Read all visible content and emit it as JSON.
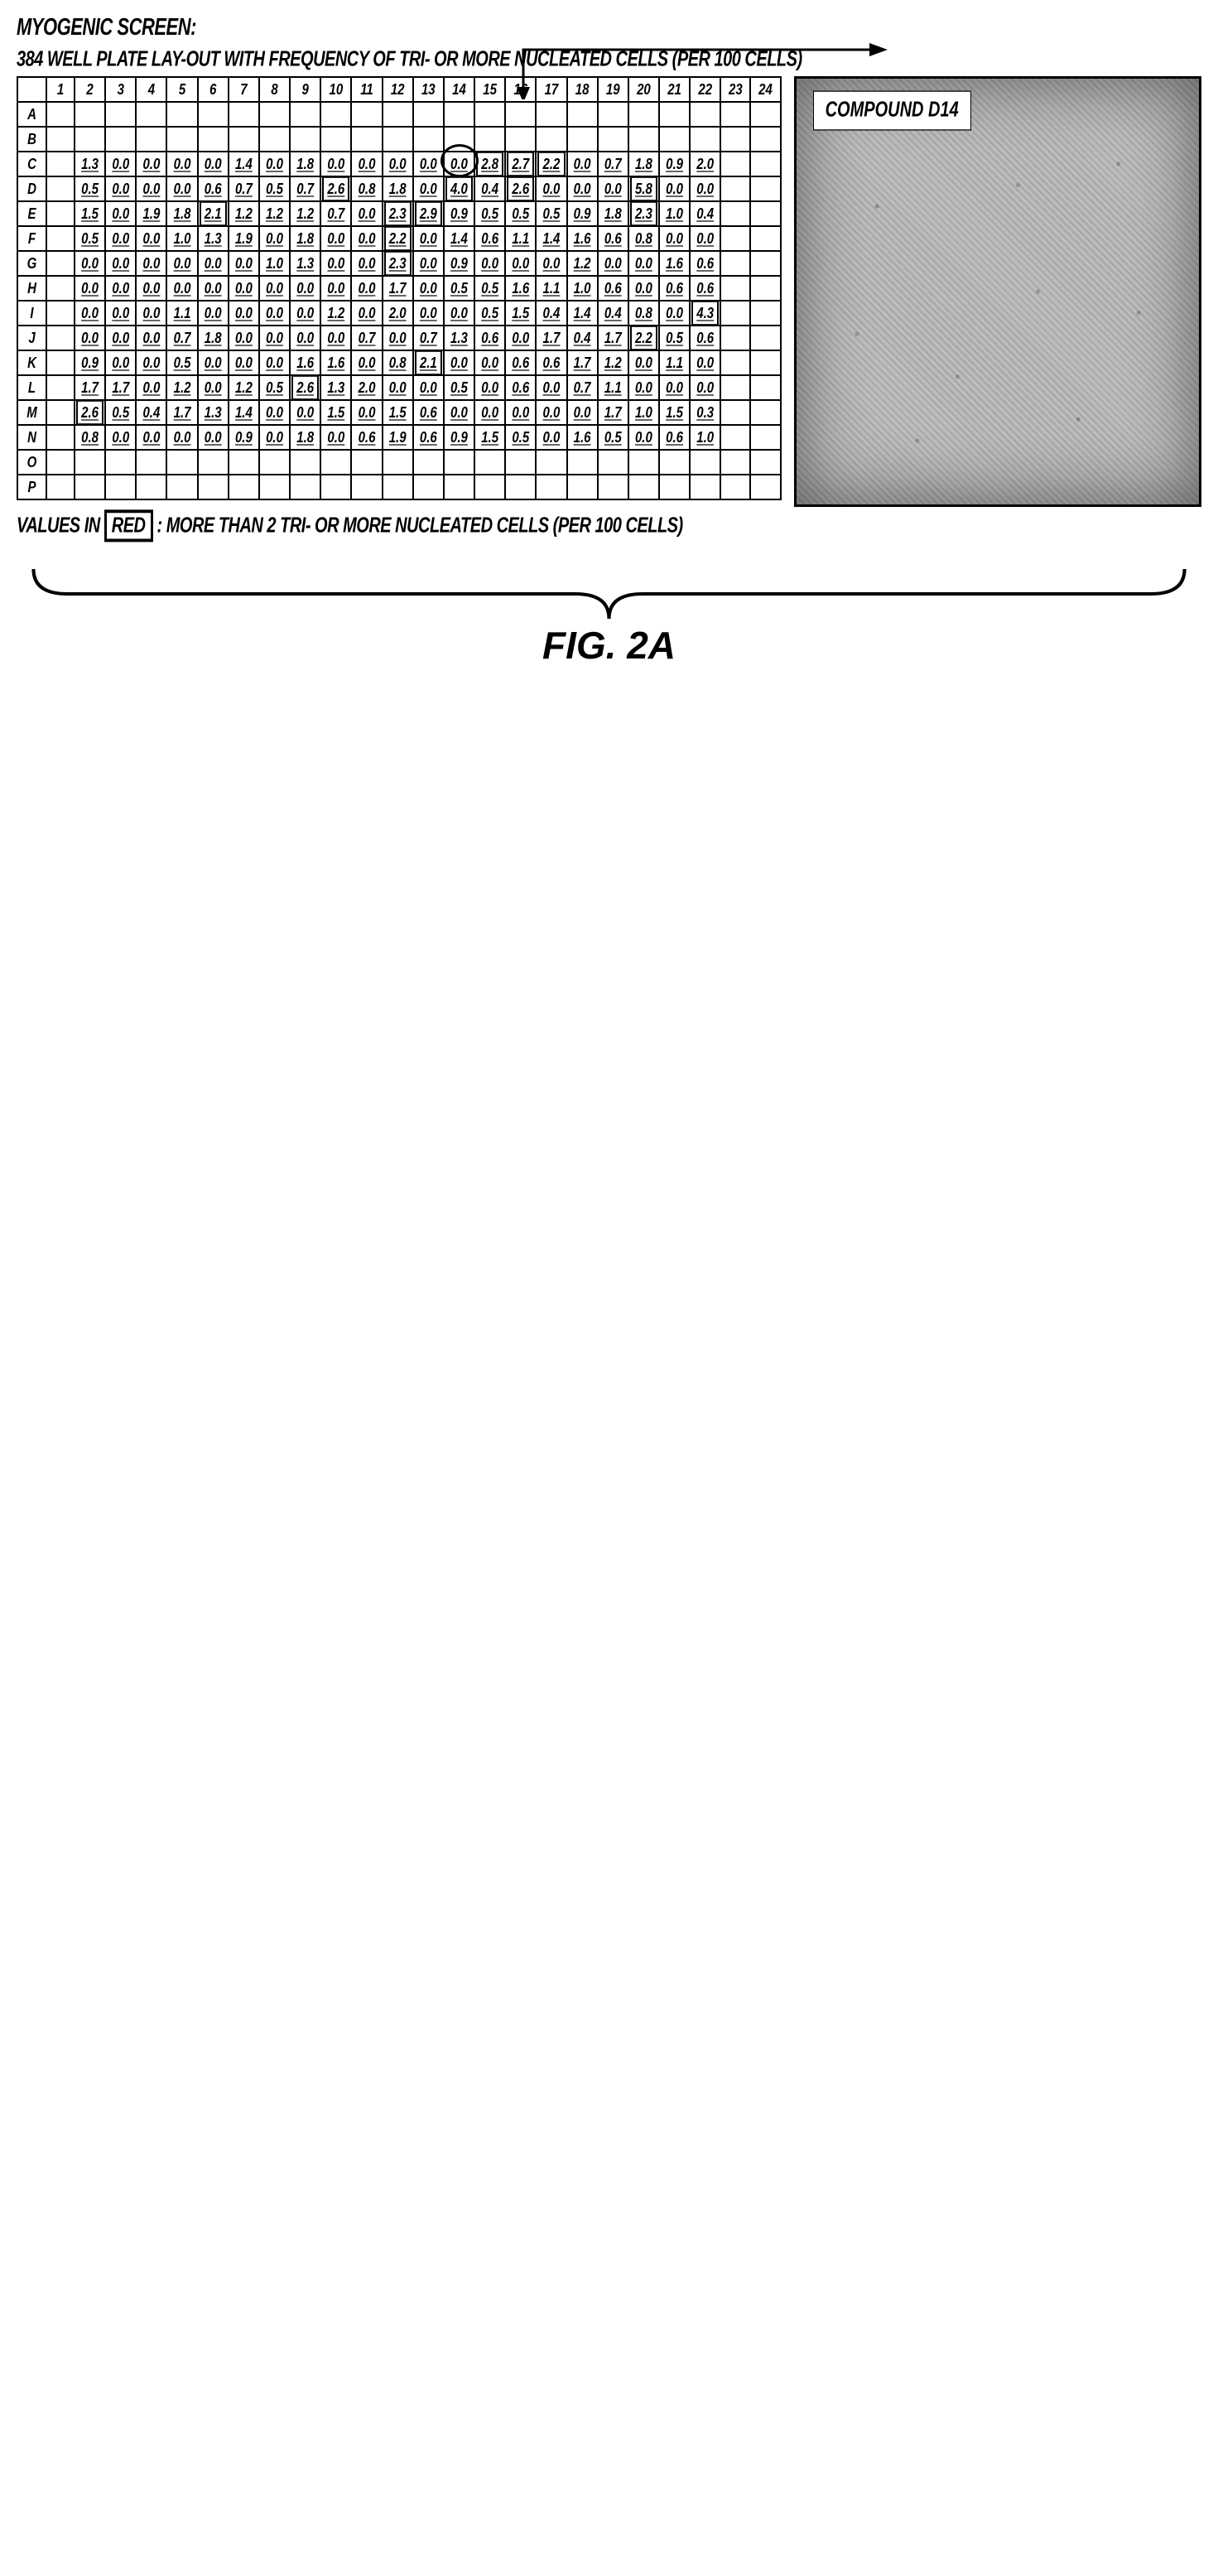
{
  "title_main": "MYOGENIC SCREEN:",
  "subtitle": "384 WELL PLATE LAY-OUT WITH FREQUENCY OF TRI- OR MORE NUCLEATED CELLS (PER 100 CELLS)",
  "legend_prefix": "VALUES IN ",
  "legend_red": "RED",
  "legend_suffix": " : MORE THAN 2 TRI- OR MORE NUCLEATED CELLS (PER 100 CELLS)",
  "image_label": "COMPOUND D14",
  "figure_label": "FIG. 2A",
  "columns": [
    "1",
    "2",
    "3",
    "4",
    "5",
    "6",
    "7",
    "8",
    "9",
    "10",
    "11",
    "12",
    "13",
    "14",
    "15",
    "16",
    "17",
    "18",
    "19",
    "20",
    "21",
    "22",
    "23",
    "24"
  ],
  "rows": [
    "A",
    "B",
    "C",
    "D",
    "E",
    "F",
    "G",
    "H",
    "I",
    "J",
    "K",
    "L",
    "M",
    "N",
    "O",
    "P"
  ],
  "highlight_threshold": 2.0,
  "circled_cell": {
    "row": "C",
    "col": "14"
  },
  "data": {
    "C": {
      "2": "1.3",
      "3": "0.0",
      "4": "0.0",
      "5": "0.0",
      "6": "0.0",
      "7": "1.4",
      "8": "0.0",
      "9": "1.8",
      "10": "0.0",
      "11": "0.0",
      "12": "0.0",
      "13": "0.0",
      "14": "0.0",
      "15": "2.8",
      "16": "2.7",
      "17": "2.2",
      "18": "0.0",
      "19": "0.7",
      "20": "1.8",
      "21": "0.9",
      "22": "2.0"
    },
    "D": {
      "2": "0.5",
      "3": "0.0",
      "4": "0.0",
      "5": "0.0",
      "6": "0.6",
      "7": "0.7",
      "8": "0.5",
      "9": "0.7",
      "10": "2.6",
      "11": "0.8",
      "12": "1.8",
      "13": "0.0",
      "14": "4.0",
      "15": "0.4",
      "16": "2.6",
      "17": "0.0",
      "18": "0.0",
      "19": "0.0",
      "20": "5.8",
      "21": "0.0",
      "22": "0.0"
    },
    "E": {
      "2": "1.5",
      "3": "0.0",
      "4": "1.9",
      "5": "1.8",
      "6": "2.1",
      "7": "1.2",
      "8": "1.2",
      "9": "1.2",
      "10": "0.7",
      "11": "0.0",
      "12": "2.3",
      "13": "2.9",
      "14": "0.9",
      "15": "0.5",
      "16": "0.5",
      "17": "0.5",
      "18": "0.9",
      "19": "1.8",
      "20": "2.3",
      "21": "1.0",
      "22": "0.4"
    },
    "F": {
      "2": "0.5",
      "3": "0.0",
      "4": "0.0",
      "5": "1.0",
      "6": "1.3",
      "7": "1.9",
      "8": "0.0",
      "9": "1.8",
      "10": "0.0",
      "11": "0.0",
      "12": "2.2",
      "13": "0.0",
      "14": "1.4",
      "15": "0.6",
      "16": "1.1",
      "17": "1.4",
      "18": "1.6",
      "19": "0.6",
      "20": "0.8",
      "21": "0.0",
      "22": "0.0"
    },
    "G": {
      "2": "0.0",
      "3": "0.0",
      "4": "0.0",
      "5": "0.0",
      "6": "0.0",
      "7": "0.0",
      "8": "1.0",
      "9": "1.3",
      "10": "0.0",
      "11": "0.0",
      "12": "2.3",
      "13": "0.0",
      "14": "0.9",
      "15": "0.0",
      "16": "0.0",
      "17": "0.0",
      "18": "1.2",
      "19": "0.0",
      "20": "0.0",
      "21": "1.6",
      "22": "0.6"
    },
    "H": {
      "2": "0.0",
      "3": "0.0",
      "4": "0.0",
      "5": "0.0",
      "6": "0.0",
      "7": "0.0",
      "8": "0.0",
      "9": "0.0",
      "10": "0.0",
      "11": "0.0",
      "12": "1.7",
      "13": "0.0",
      "14": "0.5",
      "15": "0.5",
      "16": "1.6",
      "17": "1.1",
      "18": "1.0",
      "19": "0.6",
      "20": "0.0",
      "21": "0.6",
      "22": "0.6"
    },
    "I": {
      "2": "0.0",
      "3": "0.0",
      "4": "0.0",
      "5": "1.1",
      "6": "0.0",
      "7": "0.0",
      "8": "0.0",
      "9": "0.0",
      "10": "1.2",
      "11": "0.0",
      "12": "2.0",
      "13": "0.0",
      "14": "0.0",
      "15": "0.5",
      "16": "1.5",
      "17": "0.4",
      "18": "1.4",
      "19": "0.4",
      "20": "0.8",
      "21": "0.0",
      "22": "4.3"
    },
    "J": {
      "2": "0.0",
      "3": "0.0",
      "4": "0.0",
      "5": "0.7",
      "6": "1.8",
      "7": "0.0",
      "8": "0.0",
      "9": "0.0",
      "10": "0.0",
      "11": "0.7",
      "12": "0.0",
      "13": "0.7",
      "14": "1.3",
      "15": "0.6",
      "16": "0.0",
      "17": "1.7",
      "18": "0.4",
      "19": "1.7",
      "20": "2.2",
      "21": "0.5",
      "22": "0.6"
    },
    "K": {
      "2": "0.9",
      "3": "0.0",
      "4": "0.0",
      "5": "0.5",
      "6": "0.0",
      "7": "0.0",
      "8": "0.0",
      "9": "1.6",
      "10": "1.6",
      "11": "0.0",
      "12": "0.8",
      "13": "2.1",
      "14": "0.0",
      "15": "0.0",
      "16": "0.6",
      "17": "0.6",
      "18": "1.7",
      "19": "1.2",
      "20": "0.0",
      "21": "1.1",
      "22": "0.0"
    },
    "L": {
      "2": "1.7",
      "3": "1.7",
      "4": "0.0",
      "5": "1.2",
      "6": "0.0",
      "7": "1.2",
      "8": "0.5",
      "9": "2.6",
      "10": "1.3",
      "11": "2.0",
      "12": "0.0",
      "13": "0.0",
      "14": "0.5",
      "15": "0.0",
      "16": "0.6",
      "17": "0.0",
      "18": "0.7",
      "19": "1.1",
      "20": "0.0",
      "21": "0.0",
      "22": "0.0"
    },
    "M": {
      "2": "2.6",
      "3": "0.5",
      "4": "0.4",
      "5": "1.7",
      "6": "1.3",
      "7": "1.4",
      "8": "0.0",
      "9": "0.0",
      "10": "1.5",
      "11": "0.0",
      "12": "1.5",
      "13": "0.6",
      "14": "0.0",
      "15": "0.0",
      "16": "0.0",
      "17": "0.0",
      "18": "0.0",
      "19": "1.7",
      "20": "1.0",
      "21": "1.5",
      "22": "0.3"
    },
    "N": {
      "2": "0.8",
      "3": "0.0",
      "4": "0.0",
      "5": "0.0",
      "6": "0.0",
      "7": "0.9",
      "8": "0.0",
      "9": "1.8",
      "10": "0.0",
      "11": "0.6",
      "12": "1.9",
      "13": "0.6",
      "14": "0.9",
      "15": "1.5",
      "16": "0.5",
      "17": "0.0",
      "18": "1.6",
      "19": "0.5",
      "20": "0.0",
      "21": "0.6",
      "22": "1.0"
    },
    "O": {},
    "P": {}
  }
}
